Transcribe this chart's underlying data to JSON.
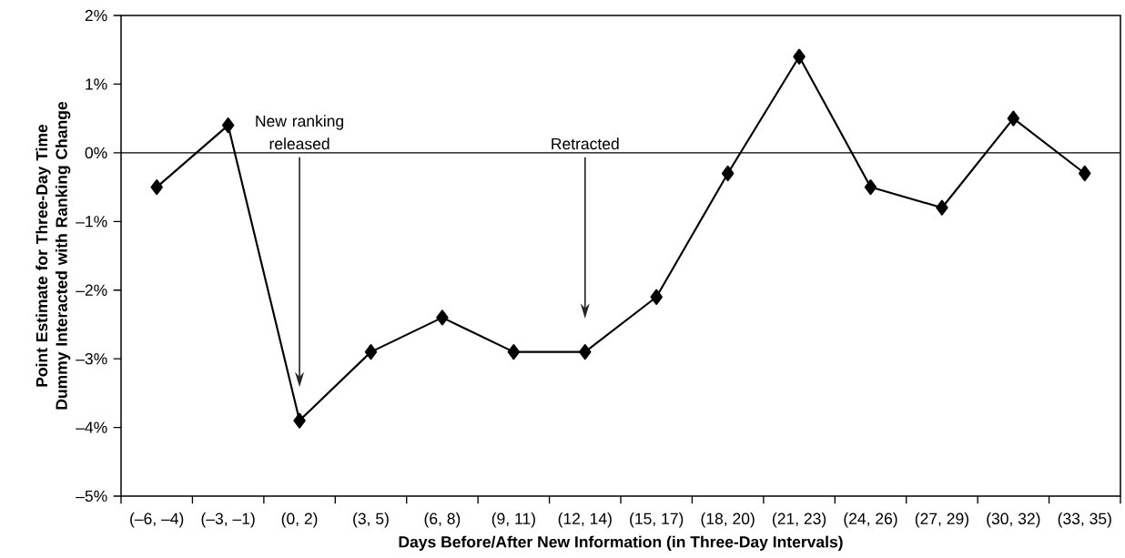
{
  "chart_data": {
    "type": "line",
    "xlabel": "Days Before/After New Information (in Three-Day Intervals)",
    "ylabel": "Point Estimate for Three-Day Time Dummy Interacted with Ranking Change",
    "categories": [
      "(–6, –4)",
      "(–3, –1)",
      "(0, 2)",
      "(3, 5)",
      "(6, 8)",
      "(9, 11)",
      "(12, 14)",
      "(15, 17)",
      "(18, 20)",
      "(21, 23)",
      "(24, 26)",
      "(27, 29)",
      "(30, 32)",
      "(33, 35)"
    ],
    "series": [
      {
        "color": "#000000",
        "values": [
          -0.5,
          0.4,
          -3.9,
          -2.9,
          -2.4,
          -2.9,
          -2.9,
          -2.1,
          -0.3,
          1.4,
          -0.5,
          -0.8,
          0.5,
          -0.3
        ]
      }
    ],
    "ylim": [
      -5,
      2
    ],
    "yticks": [
      {
        "value": -5,
        "label": "–5%"
      },
      {
        "value": -4,
        "label": "–4%"
      },
      {
        "value": -3,
        "label": "–3%"
      },
      {
        "value": -2,
        "label": "–2%"
      },
      {
        "value": -1,
        "label": "–1%"
      },
      {
        "value": 0,
        "label": "0%"
      },
      {
        "value": 1,
        "label": "1%"
      },
      {
        "value": 2,
        "label": "2%"
      }
    ],
    "ref_lines": [
      {
        "axis": "y",
        "value": 0,
        "color": "#000000"
      }
    ],
    "annotations": [
      {
        "text": "New ranking released",
        "x": "(0, 2)",
        "y": 0
      },
      {
        "text": "Retracted",
        "x": "(12, 14)",
        "y": 0
      }
    ],
    "marker": "diamond",
    "grid": false
  }
}
